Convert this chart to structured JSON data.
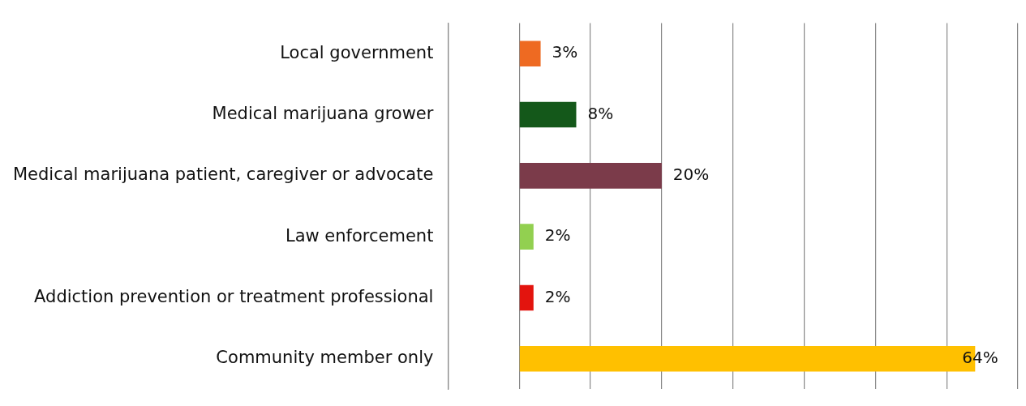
{
  "chart_data": {
    "type": "bar",
    "orientation": "horizontal",
    "categories": [
      "Local government",
      "Medical marijuana grower",
      "Medical marijuana patient, caregiver or advocate",
      "Law enforcement",
      "Addiction prevention or treatment professional",
      "Community member only"
    ],
    "values": [
      3,
      8,
      20,
      2,
      2,
      64
    ],
    "colors": [
      "#ee6a22",
      "#14581a",
      "#7b3b4a",
      "#92d050",
      "#e3140e",
      "#ffc000"
    ],
    "value_labels": [
      "3%",
      "8%",
      "20%",
      "2%",
      "2%",
      "64%"
    ],
    "xlim": [
      -10,
      70
    ],
    "xticks": [
      {
        "value": -10,
        "label": null
      },
      {
        "value": 0,
        "label": null
      },
      {
        "value": 10,
        "label": null
      },
      {
        "value": 20,
        "label": null
      },
      {
        "value": 30,
        "label": null
      },
      {
        "value": 40,
        "label": null
      },
      {
        "value": 50,
        "label": null
      },
      {
        "value": 60,
        "label": null
      },
      {
        "value": 70,
        "label": null
      }
    ],
    "grid": "x",
    "tick_labels": "y"
  }
}
